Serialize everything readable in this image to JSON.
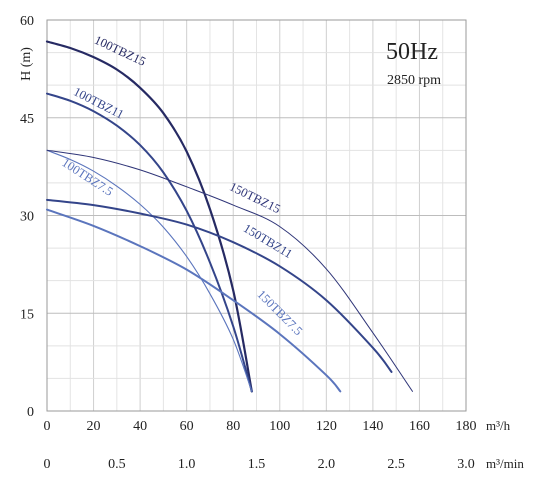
{
  "chart_data": {
    "type": "line",
    "ylabel": "H (m)",
    "xlabel_primary_unit": "m³/h",
    "xlabel_secondary_unit": "m³/min",
    "xlim": [
      0,
      180
    ],
    "ylim": [
      0,
      60
    ],
    "x_ticks": [
      "0",
      "20",
      "40",
      "60",
      "80",
      "100",
      "120",
      "140",
      "160",
      "180"
    ],
    "x2_ticks": [
      "0",
      "0.5",
      "1.0",
      "1.5",
      "2.0",
      "2.5",
      "3.0"
    ],
    "y_ticks": [
      "0",
      "15",
      "30",
      "45",
      "60"
    ],
    "frequency": "50Hz",
    "speed": "2850 rpm",
    "grid": true,
    "series": [
      {
        "name": "100TBZ15",
        "color": "#262a63",
        "width": 2.2,
        "x": [
          0,
          10,
          20,
          30,
          40,
          50,
          60,
          70,
          80,
          88
        ],
        "y": [
          56.7,
          55.7,
          54.3,
          52.4,
          49.6,
          45.7,
          39.8,
          31.0,
          18.5,
          3.0
        ]
      },
      {
        "name": "100TBZ11",
        "color": "#34458a",
        "width": 2.0,
        "x": [
          0,
          10,
          20,
          30,
          40,
          50,
          60,
          70,
          80,
          88
        ],
        "y": [
          48.7,
          47.6,
          46.0,
          43.8,
          40.8,
          36.6,
          30.7,
          22.8,
          13.0,
          3.0
        ]
      },
      {
        "name": "100TBZ7.5",
        "color": "#5b75bd",
        "width": 1.1,
        "x": [
          0,
          10,
          20,
          30,
          40,
          50,
          60,
          70,
          80,
          88
        ],
        "y": [
          40.0,
          38.6,
          36.8,
          34.5,
          31.7,
          28.2,
          23.7,
          18.0,
          11.0,
          3.0
        ]
      },
      {
        "name": "150TBZ15",
        "color": "#2f3578",
        "width": 1.0,
        "x": [
          0,
          20,
          40,
          60,
          80,
          100,
          120,
          140,
          157
        ],
        "y": [
          40.0,
          38.9,
          37.0,
          34.4,
          31.6,
          28.3,
          21.8,
          12.0,
          3.0
        ]
      },
      {
        "name": "150TBZ11",
        "color": "#34458a",
        "width": 2.0,
        "x": [
          0,
          20,
          40,
          60,
          80,
          100,
          120,
          140,
          148
        ],
        "y": [
          32.4,
          31.6,
          30.3,
          28.6,
          25.9,
          22.2,
          17.0,
          9.7,
          6.0
        ]
      },
      {
        "name": "150TBZ7.5",
        "color": "#5b75bd",
        "width": 2.0,
        "x": [
          0,
          20,
          40,
          60,
          80,
          100,
          120,
          126
        ],
        "y": [
          30.9,
          28.4,
          25.3,
          21.7,
          17.0,
          11.8,
          5.5,
          3.0
        ]
      }
    ]
  }
}
